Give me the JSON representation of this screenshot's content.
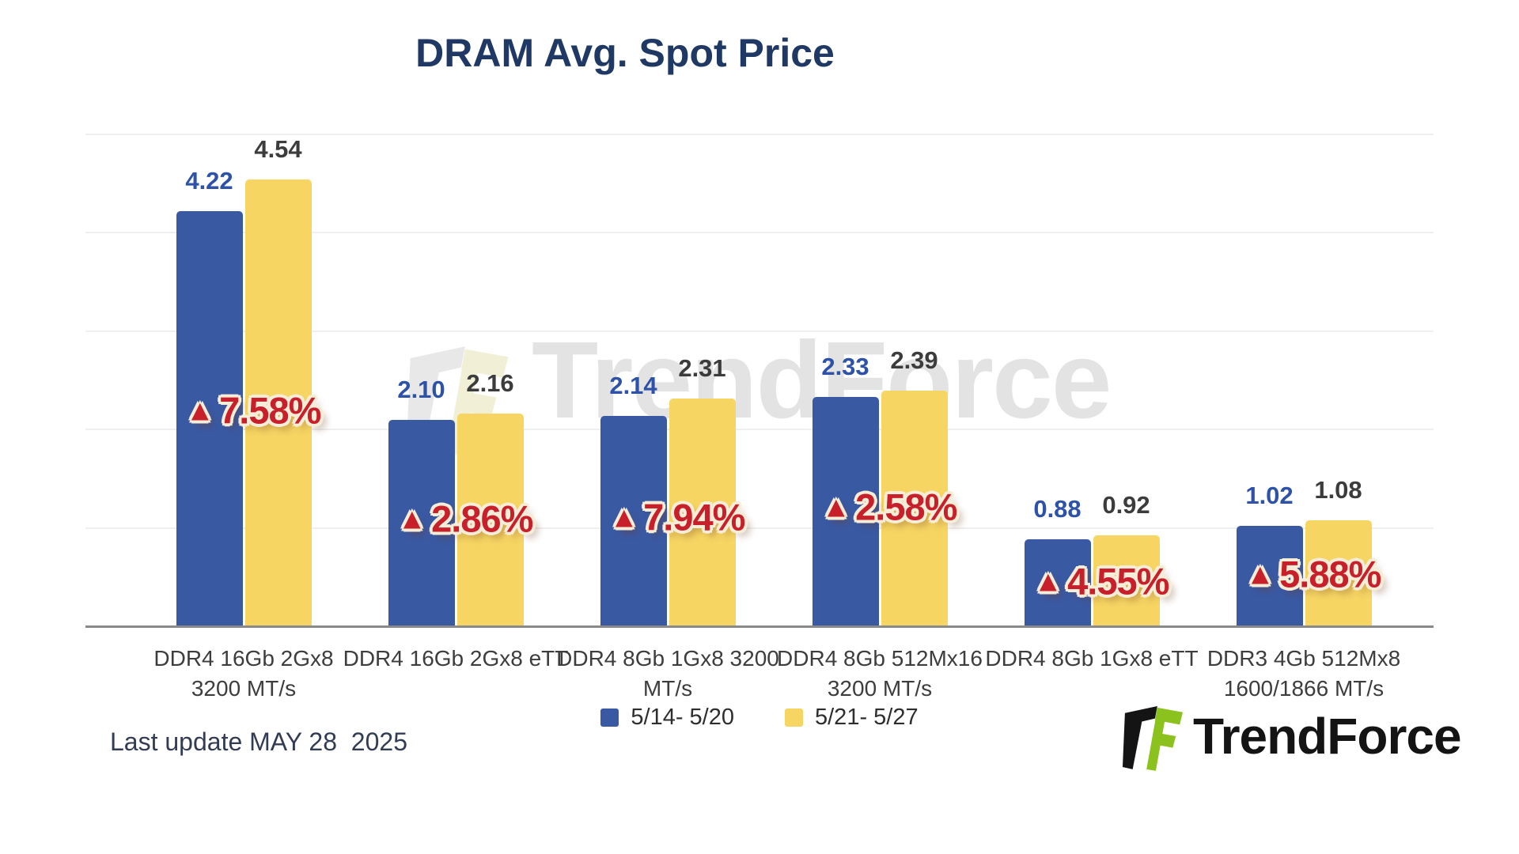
{
  "title": "DRAM Avg. Spot Price",
  "watermark": {
    "text": "TrendForce"
  },
  "legend": [
    {
      "label": "5/14- 5/20",
      "color": "#3A59A3"
    },
    {
      "label": "5/21- 5/27",
      "color": "#F6D563"
    }
  ],
  "footer": {
    "last_update": "Last update MAY 28  2025",
    "brand": "TrendForce"
  },
  "colors": {
    "series1_blue": "#3A59A3",
    "series2_yellow": "#F6D563",
    "change_red": "#C8202B",
    "title_navy": "#1F3864",
    "value_label_blue": "#2D52A8",
    "value_label_dark": "#3C3C3C",
    "axis_gray": "#8a8a8a",
    "logo_green": "#8CC21E",
    "logo_black": "#141414",
    "watermark_gray": "#E3E3E3"
  },
  "chart_data": {
    "type": "bar",
    "title": "DRAM Avg. Spot Price",
    "categories": [
      [
        "DDR4 16Gb 2Gx8",
        "3200 MT/s"
      ],
      [
        "DDR4 16Gb 2Gx8 eTT"
      ],
      [
        "DDR4 8Gb 1Gx8 3200",
        "MT/s"
      ],
      [
        "DDR4 8Gb 512Mx16",
        "3200 MT/s"
      ],
      [
        "DDR4 8Gb 1Gx8 eTT"
      ],
      [
        "DDR3 4Gb 512Mx8",
        "1600/1866 MT/s"
      ]
    ],
    "series": [
      {
        "name": "5/14- 5/20",
        "color": "#3A59A3",
        "values": [
          4.22,
          2.1,
          2.14,
          2.33,
          0.88,
          1.02
        ]
      },
      {
        "name": "5/21- 5/27",
        "color": "#F6D563",
        "values": [
          4.54,
          2.16,
          2.31,
          2.39,
          0.92,
          1.08
        ]
      }
    ],
    "change_pct": [
      7.58,
      2.86,
      7.94,
      2.58,
      4.55,
      5.88
    ],
    "change_direction": "up",
    "ylim": [
      0,
      5
    ],
    "grid": "faint horizontal lines every 1.0",
    "legend_position": "bottom-center"
  }
}
